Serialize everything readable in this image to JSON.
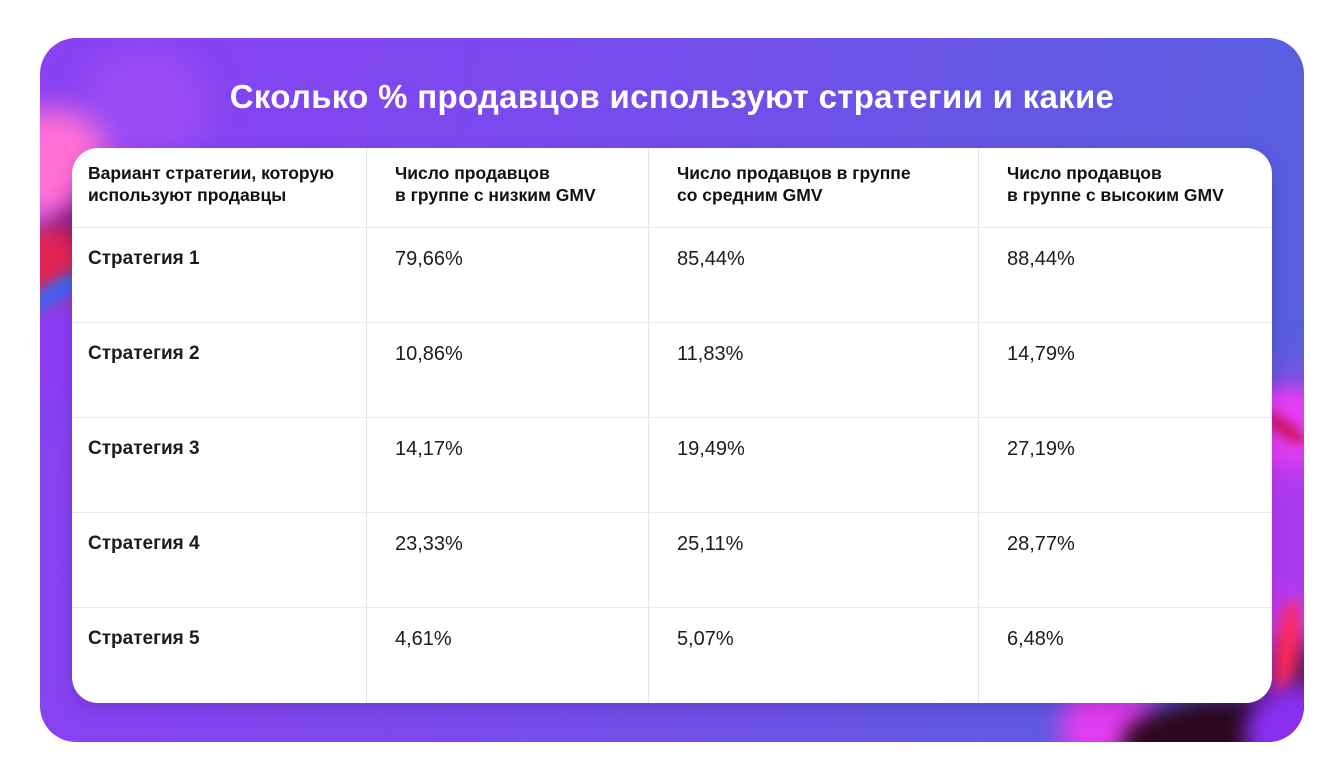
{
  "chart_data": {
    "type": "table",
    "title": "Сколько % продавцов используют стратегии и какие",
    "columns": [
      {
        "line1": "Вариант стратегии, которую",
        "line2": "используют продавцы"
      },
      {
        "line1": "Число продавцов",
        "line2": "в группе с низким GMV"
      },
      {
        "line1": "Число продавцов в группе",
        "line2": "со средним GMV"
      },
      {
        "line1": "Число продавцов",
        "line2": "в группе с высоким GMV"
      }
    ],
    "rows": [
      {
        "label": "Стратегия 1",
        "values": [
          "79,66%",
          "85,44%",
          "88,44%"
        ]
      },
      {
        "label": "Стратегия 2",
        "values": [
          "10,86%",
          "11,83%",
          "14,79%"
        ]
      },
      {
        "label": "Стратегия 3",
        "values": [
          "14,17%",
          "19,49%",
          "27,19%"
        ]
      },
      {
        "label": "Стратегия 4",
        "values": [
          "23,33%",
          "25,11%",
          "28,77%"
        ]
      },
      {
        "label": "Стратегия 5",
        "values": [
          "4,61%",
          "5,07%",
          "6,48%"
        ]
      }
    ],
    "value_format": "percent, comma decimal separator"
  },
  "colors": {
    "page_margin": "#ffffff",
    "slide_gradient_left": "#8a41f2",
    "slide_gradient_right": "#5560dd",
    "accent_magenta": "#cb3af2",
    "accent_pink": "#ff6fd6",
    "accent_crimson": "#e02355",
    "accent_blue": "#2e6cf0",
    "card_background": "#ffffff",
    "title_text": "#ffffff",
    "table_text": "#1c1c1c",
    "divider": "#e9e9ec"
  }
}
